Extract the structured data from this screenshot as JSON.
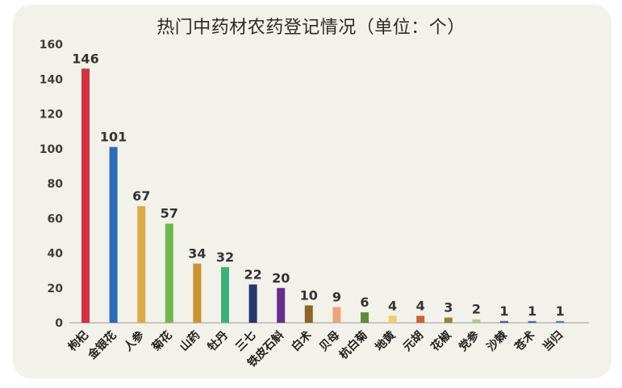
{
  "chart_data": {
    "type": "bar",
    "title": "热门中药材农药登记情况（单位：个）",
    "categories": [
      "枸杞",
      "金银花",
      "人参",
      "菊花",
      "山药",
      "牡丹",
      "三七",
      "铁皮石斛",
      "白术",
      "贝母",
      "杭白菊",
      "地黄",
      "元胡",
      "花椒",
      "党参",
      "沙棘",
      "苍术",
      "当归"
    ],
    "values": [
      146,
      101,
      67,
      57,
      34,
      32,
      22,
      20,
      10,
      9,
      6,
      4,
      4,
      3,
      2,
      1,
      1,
      1
    ],
    "colors": [
      "#d3313b",
      "#2a6cb8",
      "#deaa45",
      "#72b74e",
      "#c9932f",
      "#3cb27a",
      "#27366e",
      "#6a2c8e",
      "#8c6526",
      "#f0a27c",
      "#5c8c3b",
      "#f2cd67",
      "#c9642e",
      "#a27e33",
      "#a6cf8a",
      "#3d58a8",
      "#4a6ab5",
      "#5577bb"
    ],
    "yticks": [
      0,
      20,
      40,
      60,
      80,
      100,
      120,
      140,
      160
    ],
    "ylim": [
      0,
      160
    ],
    "grid": false
  }
}
